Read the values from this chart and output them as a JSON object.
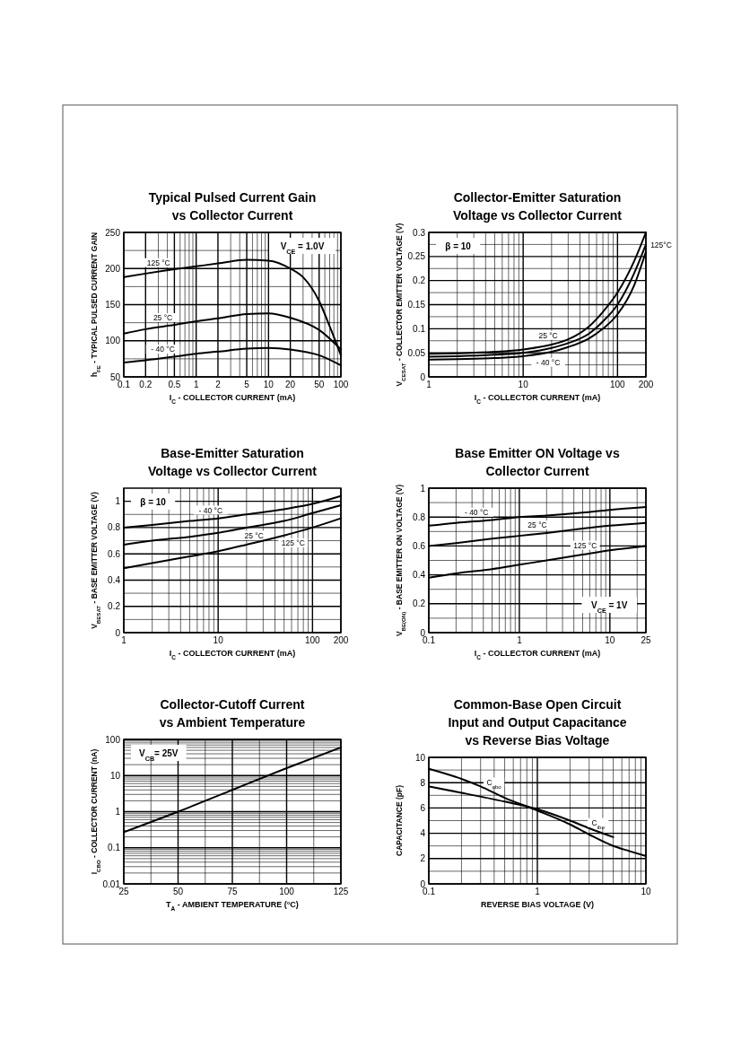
{
  "chart_data": [
    {
      "type": "line",
      "title": "Typical Pulsed Current Gain\nvs Collector Current",
      "xlabel": "I$_{C}$ - COLLECTOR CURRENT  (mA)",
      "ylabel": "h$_{FE}$ - TYPICAL PULSED CURRENT GAIN",
      "log": "x",
      "grid": true,
      "legend": false,
      "xlim": [
        0.1,
        100
      ],
      "ylim": [
        50,
        250
      ],
      "xticks": [
        0.1,
        0.2,
        {
          "value": 0.3,
          "label": null
        },
        {
          "value": 0.4,
          "label": null
        },
        0.5,
        {
          "value": 0.6,
          "label": null
        },
        {
          "value": 0.7,
          "label": null
        },
        {
          "value": 0.8,
          "label": null
        },
        {
          "value": 0.9,
          "label": null
        },
        1,
        2,
        {
          "value": 3,
          "label": null
        },
        {
          "value": 4,
          "label": null
        },
        5,
        {
          "value": 6,
          "label": null
        },
        {
          "value": 7,
          "label": null
        },
        {
          "value": 8,
          "label": null
        },
        {
          "value": 9,
          "label": null
        },
        10,
        20,
        {
          "value": 30,
          "label": null
        },
        {
          "value": 40,
          "label": null
        },
        50,
        {
          "value": 60,
          "label": null
        },
        {
          "value": 70,
          "label": null
        },
        {
          "value": 80,
          "label": null
        },
        {
          "value": 90,
          "label": null
        },
        100
      ],
      "yticks": [
        50,
        {
          "value": 75,
          "label": null
        },
        100,
        {
          "value": 125,
          "label": null
        },
        150,
        {
          "value": 175,
          "label": null
        },
        200,
        {
          "value": 225,
          "label": null
        },
        250
      ],
      "annotations": [
        "V$_{CE}$ = 1.0V"
      ],
      "series": [
        {
          "name": "125 °C",
          "color": "#000000",
          "x": [
            0.1,
            0.2,
            0.5,
            1,
            2,
            5,
            10,
            20,
            30,
            50,
            70,
            100
          ],
          "values": [
            188,
            193,
            199,
            203,
            207,
            212,
            211,
            200,
            188,
            155,
            120,
            80
          ]
        },
        {
          "name": "25 °C",
          "color": "#000000",
          "x": [
            0.1,
            0.2,
            0.5,
            1,
            2,
            5,
            10,
            20,
            50,
            100
          ],
          "values": [
            110,
            116,
            122,
            127,
            131,
            137,
            138,
            132,
            115,
            88
          ]
        },
        {
          "name": "- 40 °C",
          "color": "#000000",
          "x": [
            0.1,
            0.2,
            0.5,
            1,
            2,
            5,
            10,
            20,
            50,
            100
          ],
          "values": [
            70,
            73,
            78,
            82,
            85,
            89,
            90,
            88,
            80,
            66
          ]
        }
      ]
    },
    {
      "type": "line",
      "title": "Collector-Emitter Saturation\nVoltage vs Collector Current",
      "xlabel": "I$_{C}$ - COLLECTOR CURRENT  (mA)",
      "ylabel": "V$_{CESAT}$ - COLLECTOR EMITTER VOLTAGE (V)",
      "log": "x",
      "grid": true,
      "legend": false,
      "xlim": [
        1,
        200
      ],
      "ylim": [
        0,
        0.3
      ],
      "xticks": [
        1,
        {
          "value": 2,
          "label": null
        },
        {
          "value": 3,
          "label": null
        },
        {
          "value": 4,
          "label": null
        },
        {
          "value": 5,
          "label": null
        },
        {
          "value": 6,
          "label": null
        },
        {
          "value": 7,
          "label": null
        },
        {
          "value": 8,
          "label": null
        },
        {
          "value": 9,
          "label": null
        },
        10,
        {
          "value": 20,
          "label": null
        },
        {
          "value": 30,
          "label": null
        },
        {
          "value": 40,
          "label": null
        },
        {
          "value": 50,
          "label": null
        },
        {
          "value": 60,
          "label": null
        },
        {
          "value": 70,
          "label": null
        },
        {
          "value": 80,
          "label": null
        },
        {
          "value": 90,
          "label": null
        },
        100,
        200
      ],
      "yticks": [
        0,
        {
          "value": 0.025,
          "label": null
        },
        0.05,
        {
          "value": 0.075,
          "label": null
        },
        0.1,
        {
          "value": 0.125,
          "label": null
        },
        0.15,
        {
          "value": 0.175,
          "label": null
        },
        0.2,
        {
          "value": 0.225,
          "label": null
        },
        0.25,
        {
          "value": 0.275,
          "label": null
        },
        0.3
      ],
      "annotations": [
        "β = 10"
      ],
      "series": [
        {
          "name": "25 °C",
          "color": "#000000",
          "x": [
            1,
            2,
            5,
            10,
            20,
            30,
            50,
            70,
            100,
            150,
            200
          ],
          "values": [
            0.048,
            0.049,
            0.052,
            0.057,
            0.067,
            0.078,
            0.105,
            0.135,
            0.175,
            0.24,
            0.3
          ]
        },
        {
          "name": "125°C",
          "color": "#000000",
          "x": [
            1,
            2,
            5,
            10,
            20,
            30,
            50,
            70,
            100,
            150,
            200
          ],
          "values": [
            0.042,
            0.043,
            0.046,
            0.05,
            0.06,
            0.07,
            0.09,
            0.115,
            0.15,
            0.215,
            0.275
          ]
        },
        {
          "name": "- 40 °C",
          "color": "#000000",
          "x": [
            1,
            2,
            5,
            10,
            20,
            30,
            50,
            70,
            100,
            150,
            200
          ],
          "values": [
            0.036,
            0.037,
            0.039,
            0.043,
            0.052,
            0.062,
            0.08,
            0.1,
            0.13,
            0.19,
            0.26
          ]
        }
      ]
    },
    {
      "type": "line",
      "title": "Base-Emitter Saturation\nVoltage vs Collector Current",
      "xlabel": "I$_{C}$ - COLLECTOR CURRENT  (mA)",
      "ylabel": "V$_{BESAT}$ - BASE EMITTER VOLTAGE (V)",
      "log": "x",
      "grid": true,
      "legend": false,
      "xlim": [
        1,
        200
      ],
      "ylim": [
        0,
        1.1
      ],
      "xticks": [
        1,
        {
          "value": 2,
          "label": null
        },
        {
          "value": 3,
          "label": null
        },
        {
          "value": 4,
          "label": null
        },
        {
          "value": 5,
          "label": null
        },
        {
          "value": 6,
          "label": null
        },
        {
          "value": 7,
          "label": null
        },
        {
          "value": 8,
          "label": null
        },
        {
          "value": 9,
          "label": null
        },
        10,
        {
          "value": 20,
          "label": null
        },
        {
          "value": 30,
          "label": null
        },
        {
          "value": 40,
          "label": null
        },
        {
          "value": 50,
          "label": null
        },
        {
          "value": 60,
          "label": null
        },
        {
          "value": 70,
          "label": null
        },
        {
          "value": 80,
          "label": null
        },
        {
          "value": 90,
          "label": null
        },
        100,
        200
      ],
      "yticks": [
        0,
        {
          "value": 0.1,
          "label": null
        },
        0.2,
        {
          "value": 0.3,
          "label": null
        },
        0.4,
        {
          "value": 0.5,
          "label": null
        },
        0.6,
        {
          "value": 0.7,
          "label": null
        },
        0.8,
        {
          "value": 0.9,
          "label": null
        },
        1
      ],
      "annotations": [
        "β = 10"
      ],
      "series": [
        {
          "name": "- 40 °C",
          "color": "#000000",
          "x": [
            1,
            2,
            5,
            10,
            20,
            50,
            100,
            200
          ],
          "values": [
            0.8,
            0.82,
            0.85,
            0.87,
            0.9,
            0.94,
            0.98,
            1.04
          ]
        },
        {
          "name": "25 °C",
          "color": "#000000",
          "x": [
            1,
            2,
            5,
            10,
            20,
            50,
            100,
            200
          ],
          "values": [
            0.67,
            0.7,
            0.73,
            0.76,
            0.8,
            0.85,
            0.91,
            0.97
          ]
        },
        {
          "name": "125 °C",
          "color": "#000000",
          "x": [
            1,
            2,
            5,
            10,
            20,
            50,
            100,
            200
          ],
          "values": [
            0.49,
            0.53,
            0.58,
            0.62,
            0.67,
            0.74,
            0.8,
            0.87
          ]
        }
      ]
    },
    {
      "type": "line",
      "title": "Base Emitter ON Voltage vs\nCollector Current",
      "xlabel": "I$_{C}$ - COLLECTOR CURRENT  (mA)",
      "ylabel": "V$_{BE(ON)}$ - BASE EMITTER ON VOLTAGE (V)",
      "log": "x",
      "grid": true,
      "legend": false,
      "xlim": [
        0.1,
        25
      ],
      "ylim": [
        0,
        1
      ],
      "xticks": [
        0.1,
        {
          "value": 0.2,
          "label": null
        },
        {
          "value": 0.3,
          "label": null
        },
        {
          "value": 0.4,
          "label": null
        },
        {
          "value": 0.5,
          "label": null
        },
        {
          "value": 0.6,
          "label": null
        },
        {
          "value": 0.7,
          "label": null
        },
        {
          "value": 0.8,
          "label": null
        },
        {
          "value": 0.9,
          "label": null
        },
        1,
        {
          "value": 2,
          "label": null
        },
        {
          "value": 3,
          "label": null
        },
        {
          "value": 4,
          "label": null
        },
        {
          "value": 5,
          "label": null
        },
        {
          "value": 6,
          "label": null
        },
        {
          "value": 7,
          "label": null
        },
        {
          "value": 8,
          "label": null
        },
        {
          "value": 9,
          "label": null
        },
        10,
        {
          "value": 20,
          "label": null
        },
        25
      ],
      "yticks": [
        0,
        {
          "value": 0.1,
          "label": null
        },
        0.2,
        {
          "value": 0.3,
          "label": null
        },
        0.4,
        {
          "value": 0.5,
          "label": null
        },
        0.6,
        {
          "value": 0.7,
          "label": null
        },
        0.8,
        {
          "value": 0.9,
          "label": null
        },
        1
      ],
      "annotations": [
        "V$_{CE}$ = 1V"
      ],
      "series": [
        {
          "name": "- 40 °C",
          "color": "#000000",
          "x": [
            0.1,
            0.2,
            0.5,
            1,
            2,
            5,
            10,
            25
          ],
          "values": [
            0.74,
            0.76,
            0.78,
            0.8,
            0.81,
            0.83,
            0.85,
            0.87
          ]
        },
        {
          "name": "25 °C",
          "color": "#000000",
          "x": [
            0.1,
            0.2,
            0.5,
            1,
            2,
            5,
            10,
            25
          ],
          "values": [
            0.6,
            0.62,
            0.65,
            0.67,
            0.69,
            0.72,
            0.74,
            0.76
          ]
        },
        {
          "name": "125 °C",
          "color": "#000000",
          "x": [
            0.1,
            0.2,
            0.5,
            1,
            2,
            5,
            10,
            25
          ],
          "values": [
            0.38,
            0.41,
            0.44,
            0.47,
            0.5,
            0.54,
            0.57,
            0.6
          ]
        }
      ]
    },
    {
      "type": "line",
      "title": "Collector-Cutoff Current\nvs Ambient Temperature",
      "xlabel": "T$_{A}$ - AMBIENT TEMPERATURE (°C)",
      "ylabel": "I$_{CBO}$ - COLLECTOR CURRENT (nA)",
      "log": "y",
      "grid": true,
      "legend": false,
      "xlim": [
        25,
        125
      ],
      "ylim": [
        0.01,
        100
      ],
      "xticks": [
        25,
        {
          "value": 37.5,
          "label": null
        },
        50,
        {
          "value": 62.5,
          "label": null
        },
        75,
        {
          "value": 87.5,
          "label": null
        },
        100,
        {
          "value": 112.5,
          "label": null
        },
        125
      ],
      "yticks": [
        0.01,
        {
          "value": 0.02,
          "label": null
        },
        {
          "value": 0.03,
          "label": null
        },
        {
          "value": 0.04,
          "label": null
        },
        {
          "value": 0.05,
          "label": null
        },
        {
          "value": 0.06,
          "label": null
        },
        {
          "value": 0.07,
          "label": null
        },
        {
          "value": 0.08,
          "label": null
        },
        {
          "value": 0.09,
          "label": null
        },
        0.1,
        {
          "value": 0.2,
          "label": null
        },
        {
          "value": 0.3,
          "label": null
        },
        {
          "value": 0.4,
          "label": null
        },
        {
          "value": 0.5,
          "label": null
        },
        {
          "value": 0.6,
          "label": null
        },
        {
          "value": 0.7,
          "label": null
        },
        {
          "value": 0.8,
          "label": null
        },
        {
          "value": 0.9,
          "label": null
        },
        1,
        {
          "value": 2,
          "label": null
        },
        {
          "value": 3,
          "label": null
        },
        {
          "value": 4,
          "label": null
        },
        {
          "value": 5,
          "label": null
        },
        {
          "value": 6,
          "label": null
        },
        {
          "value": 7,
          "label": null
        },
        {
          "value": 8,
          "label": null
        },
        {
          "value": 9,
          "label": null
        },
        10,
        {
          "value": 20,
          "label": null
        },
        {
          "value": 30,
          "label": null
        },
        {
          "value": 40,
          "label": null
        },
        {
          "value": 50,
          "label": null
        },
        {
          "value": 60,
          "label": null
        },
        {
          "value": 70,
          "label": null
        },
        {
          "value": 80,
          "label": null
        },
        {
          "value": 90,
          "label": null
        },
        100
      ],
      "annotations": [
        "V$_{CB}$= 25V"
      ],
      "series": [
        {
          "color": "#000000",
          "x": [
            25,
            50,
            75,
            100,
            125
          ],
          "values": [
            0.27,
            1,
            4,
            16,
            60
          ]
        }
      ]
    },
    {
      "type": "line",
      "title": "Common-Base Open Circuit\nInput and Output Capacitance\nvs Reverse Bias Voltage",
      "xlabel": "REVERSE BIAS VOLTAGE (V)",
      "ylabel": "CAPACITANCE (pF)",
      "log": "x",
      "grid": true,
      "legend": false,
      "xlim": [
        0.1,
        10
      ],
      "ylim": [
        0,
        10
      ],
      "xticks": [
        0.1,
        {
          "value": 0.2,
          "label": null
        },
        {
          "value": 0.3,
          "label": null
        },
        {
          "value": 0.4,
          "label": null
        },
        {
          "value": 0.5,
          "label": null
        },
        {
          "value": 0.6,
          "label": null
        },
        {
          "value": 0.7,
          "label": null
        },
        {
          "value": 0.8,
          "label": null
        },
        {
          "value": 0.9,
          "label": null
        },
        1,
        {
          "value": 2,
          "label": null
        },
        {
          "value": 3,
          "label": null
        },
        {
          "value": 4,
          "label": null
        },
        {
          "value": 5,
          "label": null
        },
        {
          "value": 6,
          "label": null
        },
        {
          "value": 7,
          "label": null
        },
        {
          "value": 8,
          "label": null
        },
        {
          "value": 9,
          "label": null
        },
        10
      ],
      "yticks": [
        0,
        {
          "value": 1,
          "label": null
        },
        2,
        {
          "value": 3,
          "label": null
        },
        4,
        {
          "value": 5,
          "label": null
        },
        6,
        {
          "value": 7,
          "label": null
        },
        8,
        {
          "value": 9,
          "label": null
        },
        10
      ],
      "series": [
        {
          "name": "C$_{obo}$",
          "color": "#000000",
          "x": [
            0.1,
            0.2,
            0.3,
            0.5,
            1,
            2,
            3,
            5,
            7,
            10
          ],
          "values": [
            9.1,
            8.3,
            7.7,
            6.8,
            5.8,
            4.7,
            3.9,
            3,
            2.6,
            2.2
          ]
        },
        {
          "name": "C$_{ibo}$",
          "color": "#000000",
          "x": [
            0.1,
            0.2,
            0.5,
            1,
            2,
            3,
            5
          ],
          "values": [
            7.7,
            7.2,
            6.5,
            5.9,
            5,
            4.4,
            3.7
          ]
        }
      ]
    }
  ]
}
